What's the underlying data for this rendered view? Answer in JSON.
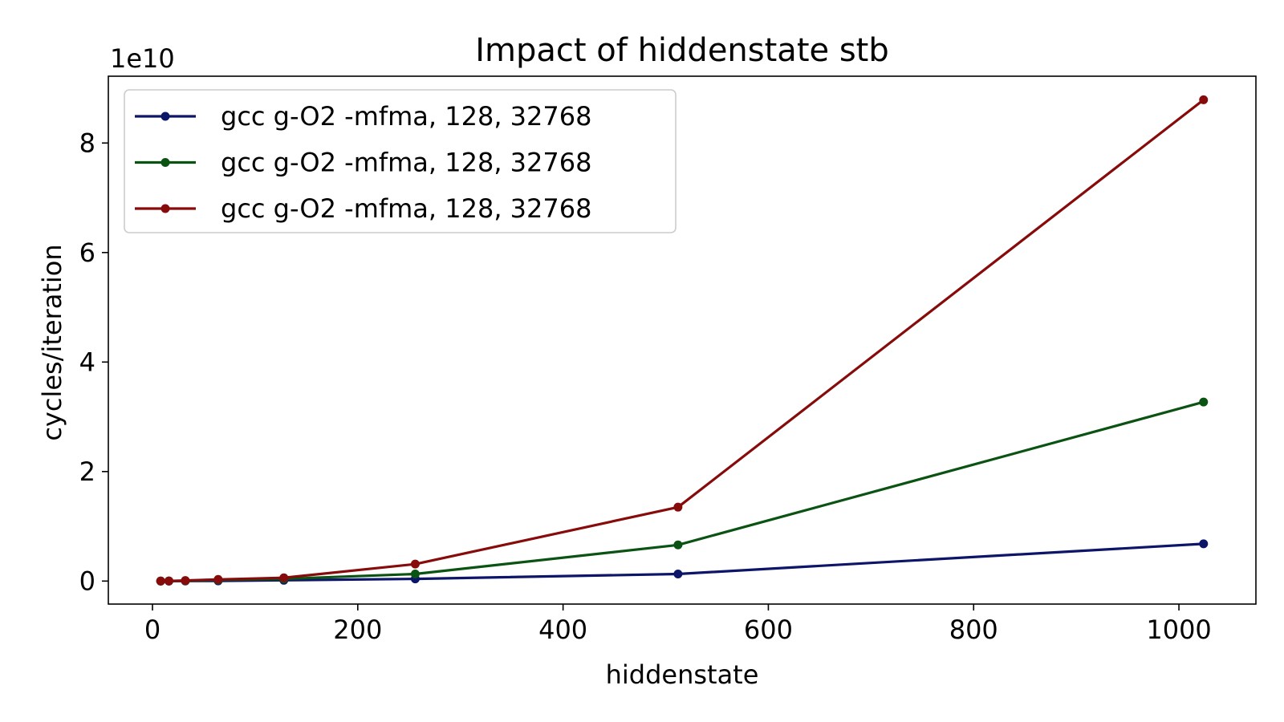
{
  "chart_data": {
    "type": "line",
    "title": "Impact of hiddenstate stb",
    "xlabel": "hiddenstate",
    "ylabel": "cycles/iteration",
    "y_offset_label": "1e10",
    "y_scale_factor": 10000000000.0,
    "xlim": [
      -43,
      1075
    ],
    "ylim": [
      -0.42,
      9.22
    ],
    "xticks": [
      0,
      200,
      400,
      600,
      800,
      1000
    ],
    "yticks": [
      0,
      2,
      4,
      6,
      8
    ],
    "grid": false,
    "legend_position": "top-left",
    "x": [
      8,
      16,
      32,
      64,
      128,
      256,
      512,
      1024
    ],
    "series": [
      {
        "name": "gcc g-O2 -mfma, 128, 32768",
        "color": "#0d1569",
        "values": [
          0.0001,
          0.0003,
          0.001,
          0.004,
          0.015,
          0.04,
          0.13,
          0.68
        ]
      },
      {
        "name": "gcc g-O2 -mfma, 128, 32768",
        "color": "#0b5312",
        "values": [
          0.0003,
          0.001,
          0.005,
          0.02,
          0.04,
          0.13,
          0.66,
          3.27
        ]
      },
      {
        "name": "gcc g-O2 -mfma, 128, 32768",
        "color": "#870b0b",
        "values": [
          0.0005,
          0.002,
          0.01,
          0.03,
          0.06,
          0.31,
          1.35,
          8.79
        ]
      }
    ]
  }
}
